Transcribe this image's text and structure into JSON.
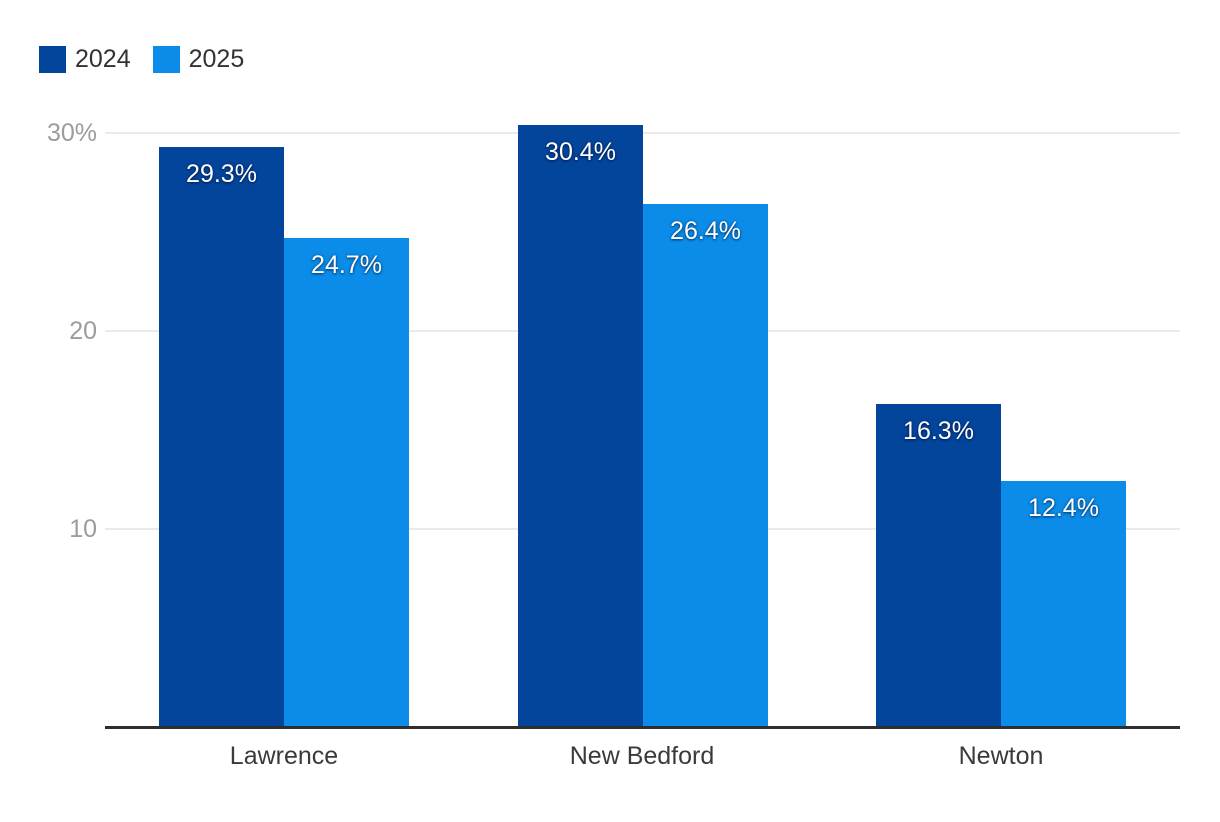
{
  "chart_data": {
    "type": "bar",
    "title": "",
    "categories": [
      "Lawrence",
      "New Bedford",
      "Newton"
    ],
    "series": [
      {
        "name": "2024",
        "color": "#04459c",
        "values": [
          29.3,
          30.4,
          16.3
        ],
        "labels": [
          "29.3%",
          "30.4%",
          "16.3%"
        ]
      },
      {
        "name": "2025",
        "color": "#0b8ce9",
        "values": [
          24.7,
          26.4,
          12.4
        ],
        "labels": [
          "24.7%",
          "26.4%",
          "12.4%"
        ]
      }
    ],
    "y_axis": {
      "ticks": [
        {
          "value": 30,
          "label": "30%"
        },
        {
          "value": 20,
          "label": "20"
        },
        {
          "value": 10,
          "label": "10"
        }
      ],
      "range": [
        0,
        30.5
      ]
    },
    "grid": "horizontal",
    "legend_position": "top-left"
  },
  "legend": {
    "items": [
      {
        "label": "2024",
        "color": "#04459c"
      },
      {
        "label": "2025",
        "color": "#0b8ce9"
      }
    ]
  },
  "colors": {
    "series_2024": "#04459c",
    "series_2025": "#0b8ce9",
    "gridline": "#eaeaea",
    "axis_line": "#2e2e2e",
    "tick_label": "#9c9c9c",
    "category_label": "#3a3a3a",
    "legend_label": "#333333",
    "value_label": "#ffffff",
    "background": "#ffffff"
  }
}
